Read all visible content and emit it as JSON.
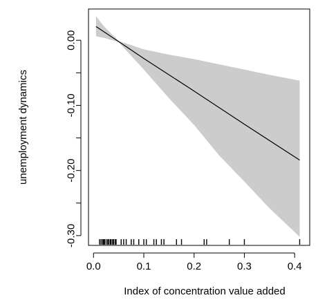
{
  "chart_data": {
    "type": "line",
    "title": "",
    "xlabel": "Index of concentration value added",
    "ylabel": "unemployment dynamics",
    "xlim": [
      -0.01,
      0.43
    ],
    "ylim": [
      -0.315,
      0.048
    ],
    "x_ticks": [
      0.0,
      0.1,
      0.2,
      0.3,
      0.4
    ],
    "x_tick_labels": [
      "0.0",
      "0.1",
      "0.2",
      "0.3",
      "0.4"
    ],
    "y_ticks": [
      0.0,
      -0.05,
      -0.1,
      -0.15,
      -0.2,
      -0.25,
      -0.3
    ],
    "y_tick_labels": [
      "0.00",
      "",
      "-0.10",
      "",
      "-0.20",
      "",
      "-0.30"
    ],
    "grid": false,
    "legend": "none",
    "colors": {
      "line": "#000000",
      "band": "#cccccc",
      "rug": "#000000"
    },
    "series": [
      {
        "role": "fit",
        "x": [
          0.005,
          0.05,
          0.1,
          0.2,
          0.3,
          0.41
        ],
        "y": [
          0.021,
          -0.002,
          -0.028,
          -0.078,
          -0.129,
          -0.184
        ]
      }
    ],
    "band": {
      "x": [
        0.005,
        0.02,
        0.05,
        0.1,
        0.15,
        0.2,
        0.25,
        0.3,
        0.35,
        0.41
      ],
      "upper": [
        0.037,
        0.022,
        -0.001,
        -0.014,
        -0.022,
        -0.029,
        -0.037,
        -0.045,
        -0.053,
        -0.062
      ],
      "lower": [
        0.006,
        0.004,
        -0.003,
        -0.045,
        -0.089,
        -0.13,
        -0.177,
        -0.217,
        -0.258,
        -0.302
      ]
    },
    "rug": [
      0.012,
      0.015,
      0.018,
      0.02,
      0.022,
      0.025,
      0.028,
      0.03,
      0.033,
      0.035,
      0.038,
      0.04,
      0.043,
      0.045,
      0.055,
      0.06,
      0.065,
      0.075,
      0.08,
      0.09,
      0.1,
      0.105,
      0.12,
      0.125,
      0.135,
      0.14,
      0.165,
      0.175,
      0.22,
      0.225,
      0.27,
      0.3,
      0.41
    ]
  }
}
